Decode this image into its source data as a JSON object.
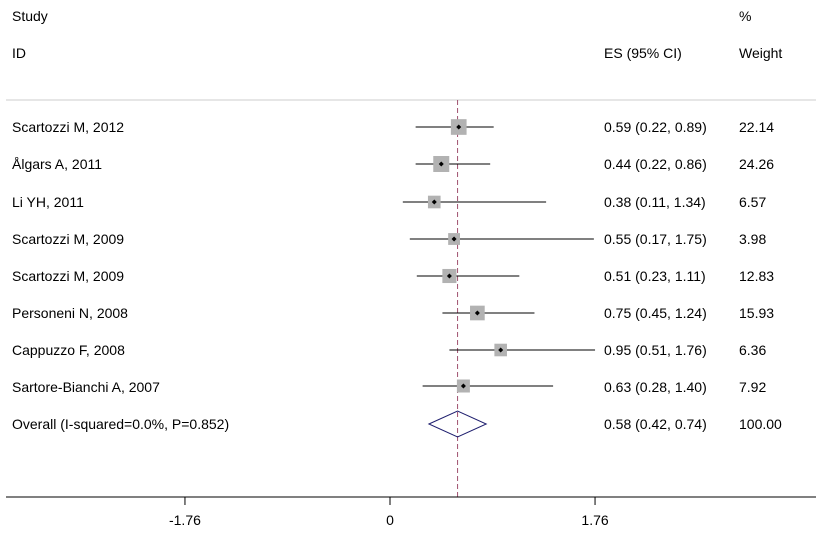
{
  "header": {
    "study": "Study",
    "id": "ID",
    "es": "ES (95% CI)",
    "pct": "%",
    "weight": "Weight"
  },
  "rows": [
    {
      "study": "Scartozzi M, 2012",
      "es_text": "0.59 (0.22, 0.89)",
      "weight": "22.14"
    },
    {
      "study": "Ålgars A, 2011",
      "es_text": "0.44 (0.22, 0.86)",
      "weight": "24.26"
    },
    {
      "study": "Li YH, 2011",
      "es_text": "0.38 (0.11, 1.34)",
      "weight": "6.57"
    },
    {
      "study": "Scartozzi M, 2009",
      "es_text": "0.55 (0.17, 1.75)",
      "weight": "3.98"
    },
    {
      "study": "Scartozzi M, 2009",
      "es_text": "0.51 (0.23, 1.11)",
      "weight": "12.83"
    },
    {
      "study": "Personeni N, 2008",
      "es_text": "0.75 (0.45, 1.24)",
      "weight": "15.93"
    },
    {
      "study": "Cappuzzo F, 2008",
      "es_text": "0.95 (0.51, 1.76)",
      "weight": "6.36"
    },
    {
      "study": "Sartore-Bianchi A, 2007",
      "es_text": "0.63 (0.28, 1.40)",
      "weight": "7.92"
    }
  ],
  "overall": {
    "label": "Overall (I-squared=0.0%, P=0.852)",
    "es_text": "0.58 (0.42, 0.74)",
    "weight": "100.00"
  },
  "chart_data": {
    "type": "forest",
    "x_ticks": [
      "-1.76",
      "0",
      "1.76"
    ],
    "x_tick_values": [
      -1.76,
      0,
      1.76
    ],
    "xlim": [
      -3.4,
      3.7
    ],
    "reference_line": 0.58,
    "studies": [
      {
        "name": "Scartozzi M, 2012",
        "es": 0.59,
        "lo": 0.22,
        "hi": 0.89,
        "weight": 22.14
      },
      {
        "name": "Ålgars A, 2011",
        "es": 0.44,
        "lo": 0.22,
        "hi": 0.86,
        "weight": 24.26
      },
      {
        "name": "Li YH, 2011",
        "es": 0.38,
        "lo": 0.11,
        "hi": 1.34,
        "weight": 6.57
      },
      {
        "name": "Scartozzi M, 2009",
        "es": 0.55,
        "lo": 0.17,
        "hi": 1.75,
        "weight": 3.98
      },
      {
        "name": "Scartozzi M, 2009",
        "es": 0.51,
        "lo": 0.23,
        "hi": 1.11,
        "weight": 12.83
      },
      {
        "name": "Personeni N, 2008",
        "es": 0.75,
        "lo": 0.45,
        "hi": 1.24,
        "weight": 15.93
      },
      {
        "name": "Cappuzzo F, 2008",
        "es": 0.95,
        "lo": 0.51,
        "hi": 1.76,
        "weight": 6.36
      },
      {
        "name": "Sartore-Bianchi A, 2007",
        "es": 0.63,
        "lo": 0.28,
        "hi": 1.4,
        "weight": 7.92
      }
    ],
    "overall": {
      "es": 0.58,
      "lo": 0.42,
      "hi": 0.74,
      "weight": 100.0
    },
    "colors": {
      "box": "#b2b2b2",
      "ref_line": "#a0506e",
      "diamond": "#1e1e6e",
      "axis": "#000000"
    }
  }
}
